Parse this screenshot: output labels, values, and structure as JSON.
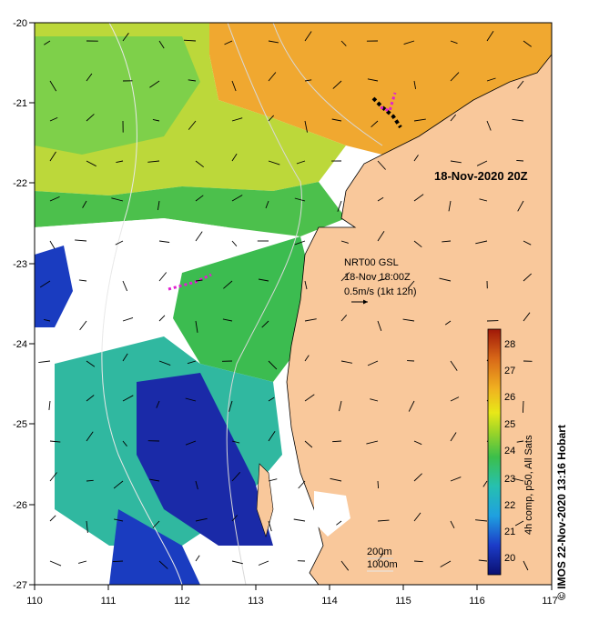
{
  "map": {
    "timestamp": "18-Nov-2020 20Z",
    "x_ticks": [
      "110",
      "111",
      "112",
      "113",
      "114",
      "115",
      "116",
      "117"
    ],
    "y_ticks": [
      "-20",
      "-21",
      "-22",
      "-23",
      "-24",
      "-25",
      "-26",
      "-27"
    ],
    "current_legend": {
      "line1": "NRT00 GSL",
      "line2": "18-Nov 18:00Z",
      "line3": "0.5m/s (1kt 12h)"
    },
    "depth_legend": {
      "line1": "200m",
      "line2": "1000m"
    },
    "colorbar": {
      "label": "4h comp, p50, All Sats",
      "ticks": [
        "20",
        "21",
        "22",
        "23",
        "24",
        "25",
        "26",
        "27",
        "28"
      ]
    },
    "credit": "IMOS 22-Nov-2020 13:16 Hobart",
    "copyright_symbol": "©",
    "colors": {
      "land": "#f9c89b",
      "cloud": "#ffffff",
      "sst_cool": "#1a2aa8",
      "sst_mid": "#3dbf5a",
      "sst_warm": "#e8a018",
      "drifter": "#e020d0"
    }
  }
}
